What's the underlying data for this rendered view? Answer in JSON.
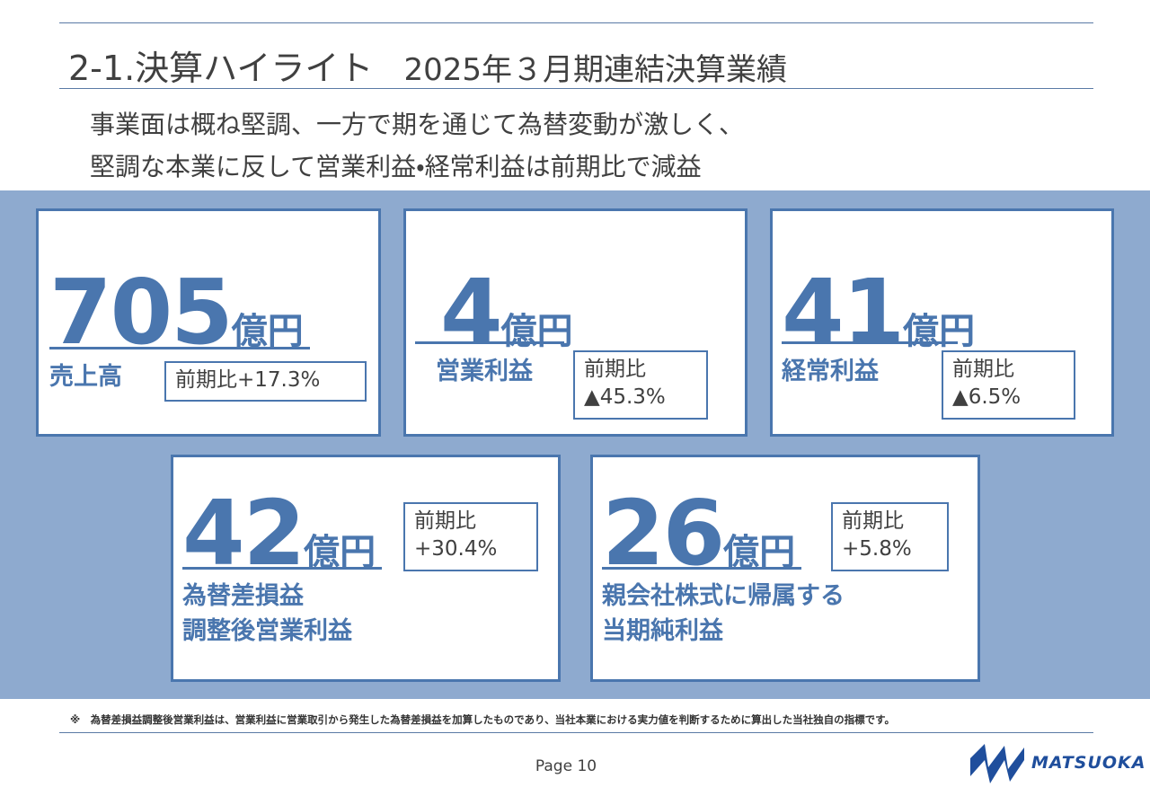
{
  "header": {
    "title": "2-1.決算ハイライト",
    "subtitle": "2025年３月期連結決算業績",
    "lead": [
      "事業面は概ね堅調、一方で期を通じて為替変動が激しく、",
      "堅調な本業に反して営業利益・経常利益は前期比で減益"
    ]
  },
  "cards": [
    {
      "value": "705",
      "unit": "億円",
      "label": [
        "売上高"
      ],
      "compare_label": "前期比",
      "compare_value": "+17.3%"
    },
    {
      "value": "4",
      "unit": "億円",
      "label": [
        "営業利益"
      ],
      "compare_label": "前期比",
      "compare_value": "▲45.3%"
    },
    {
      "value": "41",
      "unit": "億円",
      "label": [
        "経常利益"
      ],
      "compare_label": "前期比",
      "compare_value": "▲6.5%"
    },
    {
      "value": "42",
      "unit": "億円",
      "label": [
        "為替差損益",
        "調整後営業利益"
      ],
      "compare_label": "前期比",
      "compare_value": "+30.4%"
    },
    {
      "value": "26",
      "unit": "億円",
      "label": [
        "親会社株式に帰属する",
        "当期純利益"
      ],
      "compare_label": "前期比",
      "compare_value": "+5.8%"
    }
  ],
  "footer": {
    "note": "※　為替差損益調整後営業利益は、営業利益に営業取引から発生した為替差損益を加算したものであり、当社本業における実力値を判断するために算出した当社独自の指標です。",
    "page": "Page 10",
    "logo": "MATSUOKA"
  }
}
